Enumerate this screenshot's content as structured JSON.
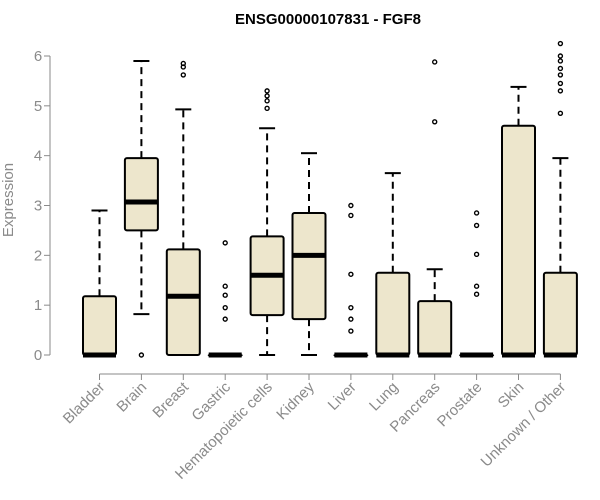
{
  "chart_data": {
    "type": "boxplot",
    "title": "ENSG00000107831 - FGF8",
    "xlabel": "",
    "ylabel": "Expression",
    "ylim": [
      0,
      6
    ],
    "yticks": [
      0,
      1,
      2,
      3,
      4,
      5,
      6
    ],
    "grid": false,
    "box_fill": "#ede6cc",
    "box_stroke": "#000000",
    "categories": [
      {
        "label": "Bladder",
        "whisker_low": 0,
        "q1": 0,
        "median": 0,
        "q3": 1.18,
        "whisker_high": 2.9,
        "outliers": []
      },
      {
        "label": "Brain",
        "whisker_low": 0.82,
        "q1": 2.5,
        "median": 3.07,
        "q3": 3.95,
        "whisker_high": 5.9,
        "outliers": [
          0.0
        ]
      },
      {
        "label": "Breast",
        "whisker_low": 0,
        "q1": 0,
        "median": 1.18,
        "q3": 2.12,
        "whisker_high": 4.93,
        "outliers": [
          5.62,
          5.78,
          5.85
        ]
      },
      {
        "label": "Gastric",
        "whisker_low": 0,
        "q1": 0,
        "median": 0,
        "q3": 0,
        "whisker_high": 0,
        "outliers": [
          0.72,
          0.95,
          1.2,
          1.38,
          2.25
        ]
      },
      {
        "label": "Hematopoietic cells",
        "whisker_low": 0,
        "q1": 0.8,
        "median": 1.6,
        "q3": 2.38,
        "whisker_high": 4.55,
        "outliers": [
          4.95,
          5.1,
          5.2,
          5.3
        ]
      },
      {
        "label": "Kidney",
        "whisker_low": 0,
        "q1": 0.72,
        "median": 2.0,
        "q3": 2.85,
        "whisker_high": 4.05,
        "outliers": []
      },
      {
        "label": "Liver",
        "whisker_low": 0,
        "q1": 0,
        "median": 0,
        "q3": 0,
        "whisker_high": 0,
        "outliers": [
          0.48,
          0.72,
          0.95,
          1.62,
          2.8,
          3.0
        ]
      },
      {
        "label": "Lung",
        "whisker_low": 0,
        "q1": 0,
        "median": 0,
        "q3": 1.65,
        "whisker_high": 3.65,
        "outliers": []
      },
      {
        "label": "Pancreas",
        "whisker_low": 0,
        "q1": 0,
        "median": 0,
        "q3": 1.08,
        "whisker_high": 1.72,
        "outliers": [
          4.68,
          5.88
        ]
      },
      {
        "label": "Prostate",
        "whisker_low": 0,
        "q1": 0,
        "median": 0,
        "q3": 0,
        "whisker_high": 0,
        "outliers": [
          1.22,
          1.38,
          2.02,
          2.6,
          2.85
        ]
      },
      {
        "label": "Skin",
        "whisker_low": 0,
        "q1": 0,
        "median": 0,
        "q3": 4.6,
        "whisker_high": 5.38,
        "outliers": []
      },
      {
        "label": "Unknown / Other",
        "whisker_low": 0,
        "q1": 0,
        "median": 0,
        "q3": 1.65,
        "whisker_high": 3.95,
        "outliers": [
          4.85,
          5.3,
          5.45,
          5.62,
          5.75,
          5.9,
          6.0,
          6.25
        ]
      }
    ]
  }
}
